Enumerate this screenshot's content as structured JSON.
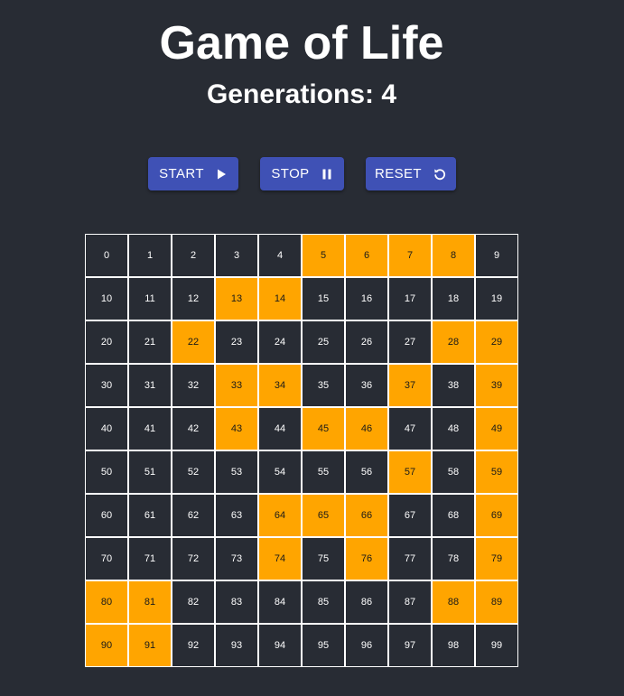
{
  "header": {
    "title": "Game of Life",
    "generations_label": "Generations: 4"
  },
  "controls": {
    "start_label": "START",
    "stop_label": "STOP",
    "reset_label": "RESET",
    "start_icon": "play-icon",
    "stop_icon": "pause-icon",
    "reset_icon": "restart-icon"
  },
  "colors": {
    "background": "#282c34",
    "button": "#3f51b5",
    "alive_cell": "#ffa500",
    "grid_line": "#ffffff"
  },
  "board": {
    "rows": 10,
    "cols": 10,
    "cells": [
      "0",
      "1",
      "2",
      "3",
      "4",
      "5",
      "6",
      "7",
      "8",
      "9",
      "10",
      "11",
      "12",
      "13",
      "14",
      "15",
      "16",
      "17",
      "18",
      "19",
      "20",
      "21",
      "22",
      "23",
      "24",
      "25",
      "26",
      "27",
      "28",
      "29",
      "30",
      "31",
      "32",
      "33",
      "34",
      "35",
      "36",
      "37",
      "38",
      "39",
      "40",
      "41",
      "42",
      "43",
      "44",
      "45",
      "46",
      "47",
      "48",
      "49",
      "50",
      "51",
      "52",
      "53",
      "54",
      "55",
      "56",
      "57",
      "58",
      "59",
      "60",
      "61",
      "62",
      "63",
      "64",
      "65",
      "66",
      "67",
      "68",
      "69",
      "70",
      "71",
      "72",
      "73",
      "74",
      "75",
      "76",
      "77",
      "78",
      "79",
      "80",
      "81",
      "82",
      "83",
      "84",
      "85",
      "86",
      "87",
      "88",
      "89",
      "90",
      "91",
      "92",
      "93",
      "94",
      "95",
      "96",
      "97",
      "98",
      "99"
    ],
    "alive": [
      5,
      6,
      7,
      8,
      13,
      14,
      22,
      28,
      29,
      33,
      34,
      37,
      39,
      43,
      45,
      46,
      49,
      57,
      59,
      64,
      65,
      66,
      69,
      74,
      76,
      79,
      80,
      81,
      88,
      89,
      90,
      91
    ]
  }
}
